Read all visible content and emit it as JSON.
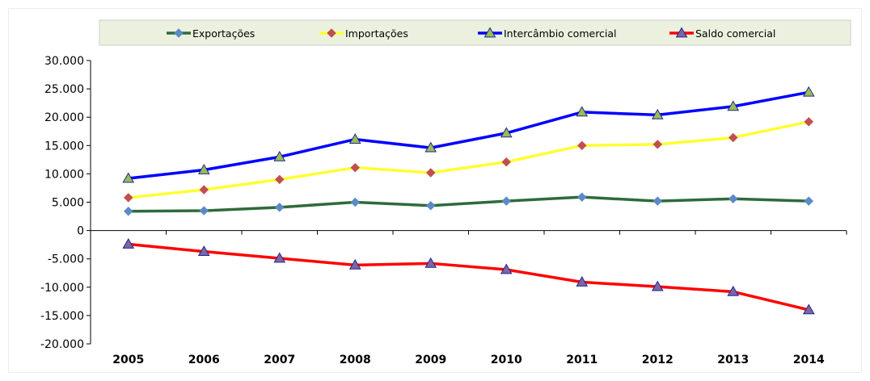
{
  "chart_data": {
    "type": "line",
    "title": "",
    "xlabel": "",
    "ylabel": "",
    "categories": [
      "2005",
      "2006",
      "2007",
      "2008",
      "2009",
      "2010",
      "2011",
      "2012",
      "2013",
      "2014"
    ],
    "ylim": [
      -20000,
      30000
    ],
    "y_ticks": [
      30000,
      25000,
      20000,
      15000,
      10000,
      5000,
      0,
      -5000,
      -10000,
      -15000,
      -20000
    ],
    "y_tick_labels": [
      "30.000",
      "25.000",
      "20.000",
      "15.000",
      "10.000",
      "5.000",
      "0",
      "-5.000",
      "-10.000",
      "-15.000",
      "-20.000"
    ],
    "grid": false,
    "legend_position": "top",
    "series": [
      {
        "name": "Exportações",
        "color": "#2e6b3b",
        "marker": "diamond",
        "marker_color": "#5b8ac6",
        "values": [
          3400,
          3500,
          4100,
          5000,
          4400,
          5200,
          5900,
          5200,
          5600,
          5200
        ]
      },
      {
        "name": "Importações",
        "color": "#ffff33",
        "marker": "diamond",
        "marker_color": "#c0504d",
        "values": [
          5800,
          7200,
          9000,
          11100,
          10200,
          12100,
          15000,
          15200,
          16400,
          19200
        ]
      },
      {
        "name": "Intercâmbio comercial",
        "color": "#0000ff",
        "marker": "triangle",
        "marker_color": "#9bbb59",
        "values": [
          9200,
          10700,
          13000,
          16100,
          14600,
          17200,
          20900,
          20400,
          21900,
          24400
        ]
      },
      {
        "name": "Saldo comercial",
        "color": "#ff0000",
        "marker": "triangle",
        "marker_color": "#8064a2",
        "values": [
          -2400,
          -3700,
          -4900,
          -6100,
          -5800,
          -6900,
          -9100,
          -9900,
          -10800,
          -14000
        ]
      }
    ]
  }
}
